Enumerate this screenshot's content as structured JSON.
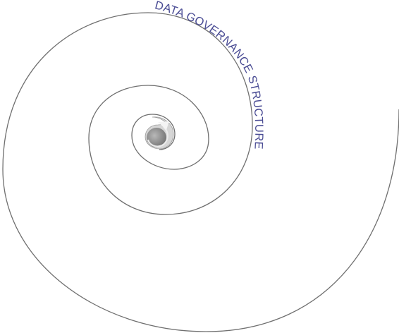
{
  "diagram": {
    "title": "DATA GOVERNANCE STRUCTURE",
    "colors": {
      "spiral_stroke": "#6f6f6f",
      "title_text": "#4a4c94",
      "core_light": "#d6d6d6",
      "core_mid": "#a9a9a9",
      "core_dark": "#7e7e7e"
    }
  }
}
